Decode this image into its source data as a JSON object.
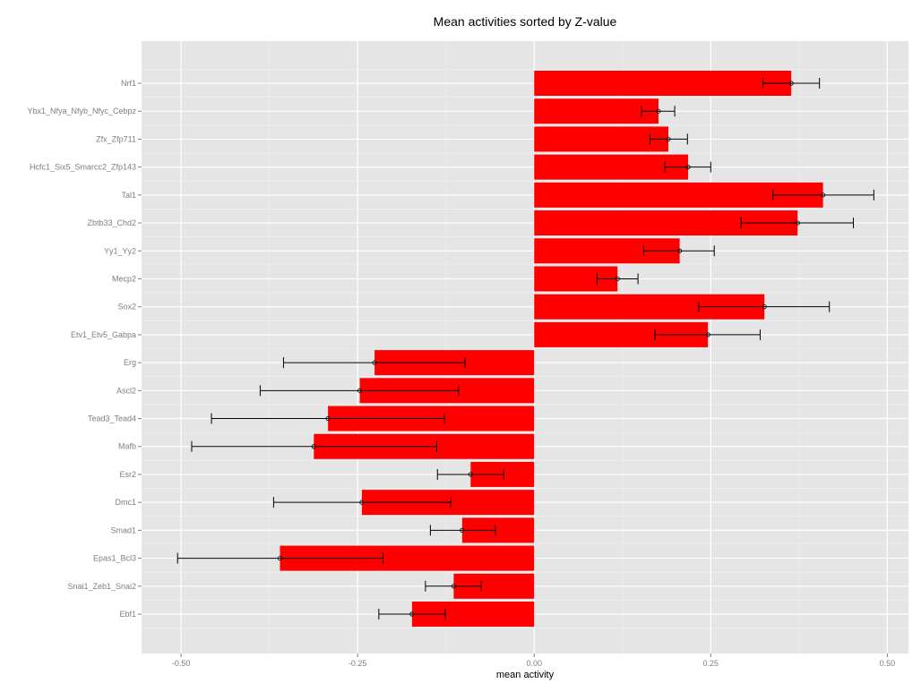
{
  "chart_data": {
    "type": "bar",
    "orientation": "horizontal",
    "title": "Mean activities sorted by Z-value",
    "xlabel": "mean activity",
    "ylabel": "",
    "xlim": [
      -0.556,
      0.53
    ],
    "xticks": [
      -0.5,
      -0.25,
      0,
      0.25,
      0.5
    ],
    "xtick_labels": [
      "-0.50",
      "-0.25",
      "0.00",
      "0.25",
      "0.50"
    ],
    "grid": true,
    "bar_color": "#ff0000",
    "panel_color": "#e5e5e5",
    "categories": [
      "Nrf1",
      "Ybx1_Nfya_Nfyb_Nfyc_Cebpz",
      "Zfx_Zfp711",
      "Hcfc1_Six5_Smarcc2_Zfp143",
      "Tal1",
      "Zbtb33_Chd2",
      "Yy1_Yy2",
      "Mecp2",
      "Sox2",
      "Etv1_Etv5_Gabpa",
      "Erg",
      "Ascl2",
      "Tead3_Tead4",
      "Mafb",
      "Esr2",
      "Dmc1",
      "Smad1",
      "Epas1_Bcl3",
      "Snai1_Zeb1_Snai2",
      "Ebf1"
    ],
    "values": [
      0.364,
      0.176,
      0.19,
      0.218,
      0.409,
      0.373,
      0.206,
      0.118,
      0.326,
      0.246,
      -0.226,
      -0.247,
      -0.292,
      -0.312,
      -0.09,
      -0.244,
      -0.102,
      -0.36,
      -0.114,
      -0.173
    ],
    "error_low": [
      0.324,
      0.152,
      0.164,
      0.185,
      0.338,
      0.293,
      0.155,
      0.089,
      0.233,
      0.171,
      -0.355,
      -0.388,
      -0.457,
      -0.485,
      -0.137,
      -0.369,
      -0.147,
      -0.505,
      -0.154,
      -0.22
    ],
    "error_high": [
      0.404,
      0.199,
      0.217,
      0.25,
      0.481,
      0.452,
      0.255,
      0.147,
      0.418,
      0.32,
      -0.098,
      -0.107,
      -0.127,
      -0.138,
      -0.043,
      -0.118,
      -0.055,
      -0.214,
      -0.075,
      -0.126
    ]
  }
}
